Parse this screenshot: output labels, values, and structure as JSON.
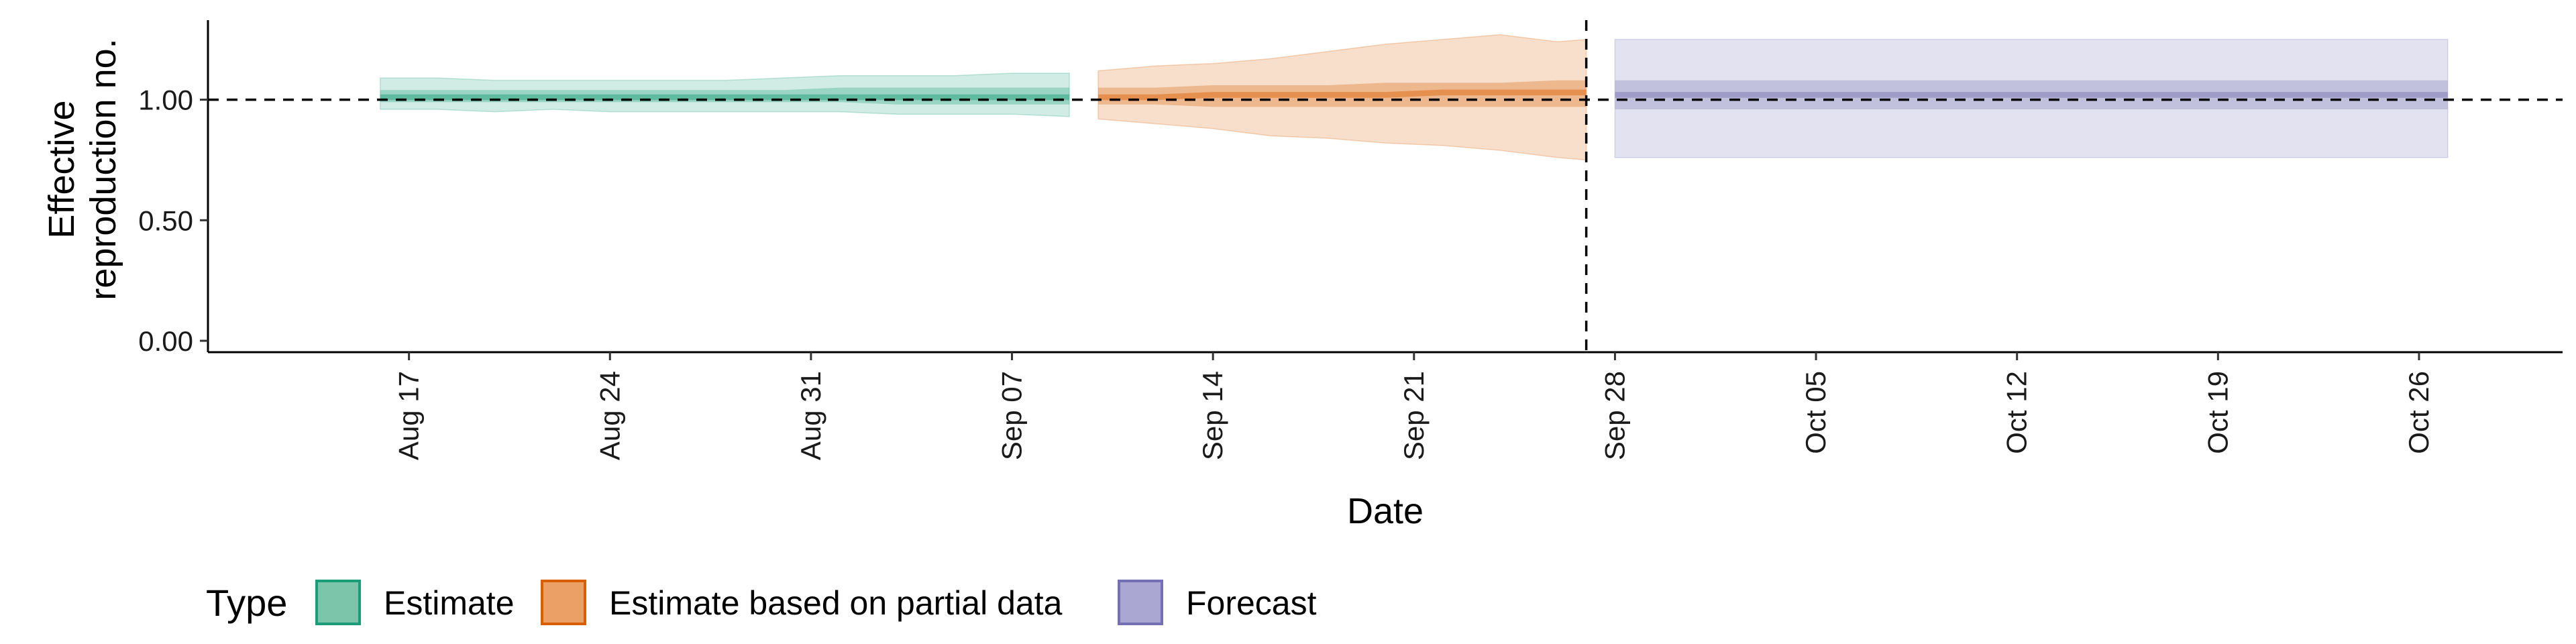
{
  "chart_data": {
    "type": "area",
    "title": "",
    "xlabel": "Date",
    "ylabel": [
      "Effective",
      "reproduction no."
    ],
    "x_ticks": [
      "Aug 17",
      "Aug 24",
      "Aug 31",
      "Sep 07",
      "Sep 14",
      "Sep 21",
      "Sep 28",
      "Oct 05",
      "Oct 12",
      "Oct 19",
      "Oct 26"
    ],
    "y_ticks": [
      "0.00",
      "0.50",
      "1.00"
    ],
    "ylim": [
      0,
      1.33
    ],
    "xlim": [
      "2020-08-10",
      "2020-10-31"
    ],
    "reference_line_y": 1.0,
    "vline_date": "2020-09-27",
    "grid": false,
    "legend": {
      "title": "Type",
      "position": "bottom-left",
      "items": [
        {
          "label": "Estimate",
          "fill": "#7cc5ab",
          "stroke": "#1b9e77"
        },
        {
          "label": "Estimate based on partial data",
          "fill": "#eba066",
          "stroke": "#d95f02"
        },
        {
          "label": "Forecast",
          "fill": "#aaa8d2",
          "stroke": "#7570b3"
        }
      ]
    },
    "series": [
      {
        "name": "Estimate",
        "color": "#1b9e77",
        "x": [
          "2020-08-16",
          "2020-08-18",
          "2020-08-20",
          "2020-08-22",
          "2020-08-24",
          "2020-08-26",
          "2020-08-28",
          "2020-08-30",
          "2020-09-01",
          "2020-09-03",
          "2020-09-05",
          "2020-09-07",
          "2020-09-09"
        ],
        "lower90": [
          0.96,
          0.96,
          0.95,
          0.96,
          0.95,
          0.95,
          0.95,
          0.95,
          0.95,
          0.94,
          0.94,
          0.94,
          0.93
        ],
        "lower50": [
          0.99,
          0.99,
          0.99,
          0.99,
          0.99,
          0.99,
          0.99,
          0.99,
          0.99,
          0.98,
          0.98,
          0.98,
          0.98
        ],
        "median": [
          1.01,
          1.01,
          1.01,
          1.01,
          1.01,
          1.01,
          1.01,
          1.01,
          1.01,
          1.01,
          1.01,
          1.01,
          1.01
        ],
        "upper50": [
          1.04,
          1.04,
          1.04,
          1.04,
          1.04,
          1.04,
          1.04,
          1.04,
          1.05,
          1.05,
          1.05,
          1.05,
          1.05
        ],
        "upper90": [
          1.09,
          1.09,
          1.08,
          1.08,
          1.08,
          1.08,
          1.08,
          1.09,
          1.1,
          1.1,
          1.1,
          1.11,
          1.11
        ]
      },
      {
        "name": "Estimate based on partial data",
        "color": "#d95f02",
        "x": [
          "2020-09-10",
          "2020-09-12",
          "2020-09-14",
          "2020-09-16",
          "2020-09-18",
          "2020-09-20",
          "2020-09-22",
          "2020-09-24",
          "2020-09-26",
          "2020-09-27"
        ],
        "lower90": [
          0.92,
          0.9,
          0.88,
          0.85,
          0.84,
          0.82,
          0.81,
          0.79,
          0.76,
          0.75
        ],
        "lower50": [
          0.98,
          0.98,
          0.97,
          0.97,
          0.97,
          0.97,
          0.97,
          0.97,
          0.97,
          0.97
        ],
        "median": [
          1.01,
          1.01,
          1.02,
          1.02,
          1.02,
          1.02,
          1.03,
          1.03,
          1.03,
          1.03
        ],
        "upper50": [
          1.05,
          1.05,
          1.06,
          1.06,
          1.06,
          1.07,
          1.07,
          1.07,
          1.08,
          1.08
        ],
        "upper90": [
          1.12,
          1.14,
          1.15,
          1.17,
          1.2,
          1.23,
          1.25,
          1.27,
          1.24,
          1.25
        ]
      },
      {
        "name": "Forecast",
        "color": "#7570b3",
        "x": [
          "2020-09-28",
          "2020-10-27"
        ],
        "lower90": [
          0.76,
          0.76
        ],
        "lower50": [
          0.96,
          0.96
        ],
        "median": [
          1.02,
          1.02
        ],
        "upper50": [
          1.08,
          1.08
        ],
        "upper90": [
          1.25,
          1.25
        ]
      }
    ]
  }
}
